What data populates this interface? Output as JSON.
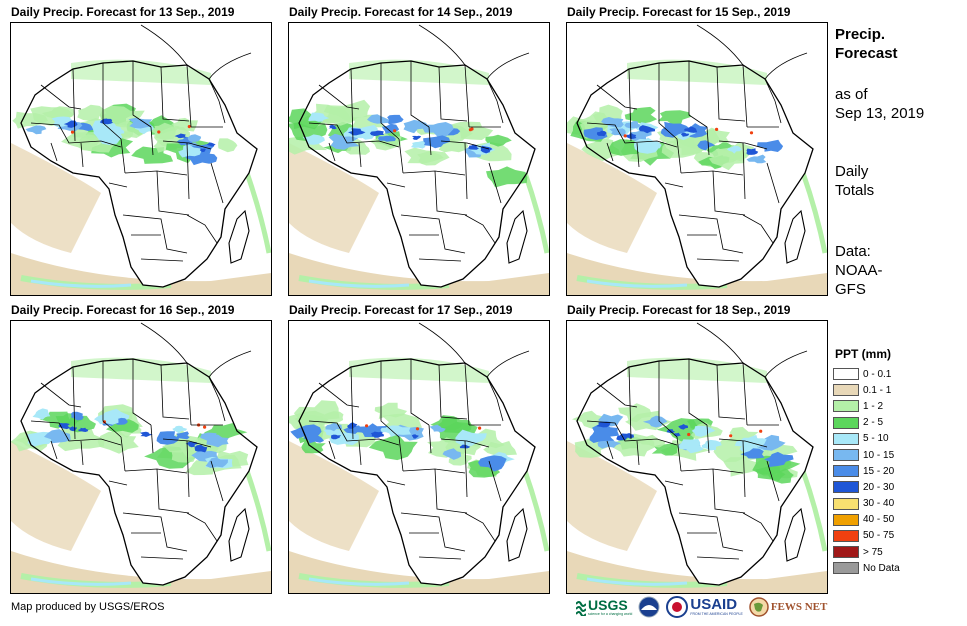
{
  "panels": [
    {
      "title": "Daily Precip. Forecast for 13 Sep., 2019"
    },
    {
      "title": "Daily Precip. Forecast for 14 Sep., 2019"
    },
    {
      "title": "Daily Precip. Forecast for 15 Sep., 2019"
    },
    {
      "title": "Daily Precip. Forecast for 16 Sep., 2019"
    },
    {
      "title": "Daily Precip. Forecast for 17 Sep., 2019"
    },
    {
      "title": "Daily Precip. Forecast for 18 Sep., 2019"
    }
  ],
  "sidebar": {
    "heading_line1": "Precip.",
    "heading_line2": "Forecast",
    "asof_line1": "as of",
    "asof_line2": "Sep 13, 2019",
    "totals_line1": "Daily",
    "totals_line2": "Totals",
    "data_line1": "Data:",
    "data_line2": "NOAA-",
    "data_line3": "GFS"
  },
  "legend": {
    "title": "PPT (mm)",
    "items": [
      {
        "label": "0 - 0.1",
        "color": "#ffffff"
      },
      {
        "label": "0.1 - 1",
        "color": "#e8d8b8"
      },
      {
        "label": "1 - 2",
        "color": "#b4f0a8"
      },
      {
        "label": "2 - 5",
        "color": "#5cd65c"
      },
      {
        "label": "5 - 10",
        "color": "#a8e8f8"
      },
      {
        "label": "10 - 15",
        "color": "#78b8f0"
      },
      {
        "label": "15 - 20",
        "color": "#4a8ce8"
      },
      {
        "label": "20 - 30",
        "color": "#1f56d6"
      },
      {
        "label": "30 - 40",
        "color": "#f8e070"
      },
      {
        "label": "40 - 50",
        "color": "#f0a000"
      },
      {
        "label": "50 - 75",
        "color": "#f04010"
      },
      {
        "label": "> 75",
        "color": "#a01818"
      },
      {
        "label": "No Data",
        "color": "#9a9a9a"
      }
    ]
  },
  "footer": {
    "credit": "Map produced by USGS/EROS",
    "logos": {
      "usgs": "USGS",
      "usgs_tagline": "science for a changing world",
      "usaid": "USAID",
      "usaid_tagline": "FROM THE AMERICAN PEOPLE",
      "fewsnet": "FEWS NET"
    }
  }
}
